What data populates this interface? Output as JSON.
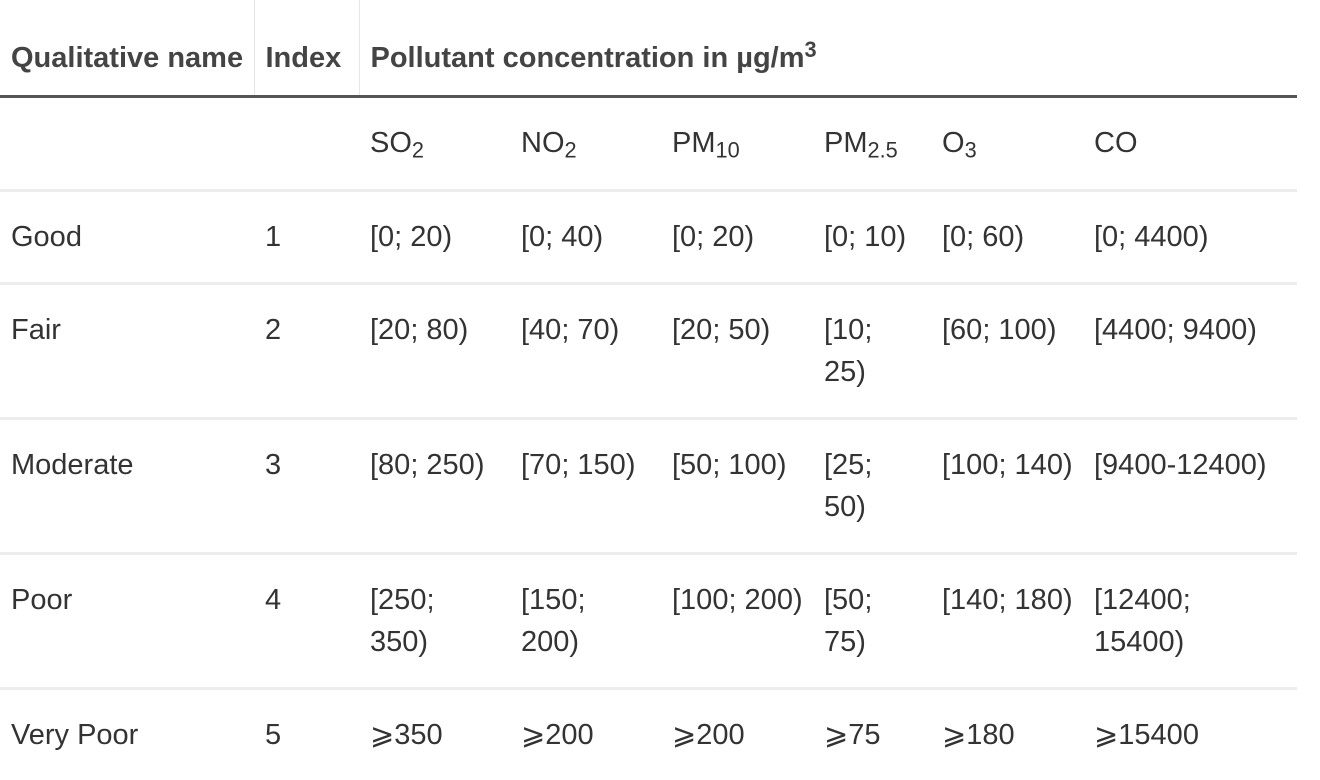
{
  "header": {
    "qualitative_name": "Qualitative name",
    "index": "Index",
    "concentration_prefix": "Pollutant concentration in µg/m",
    "concentration_sup": "3"
  },
  "pollutants": [
    {
      "base": "SO",
      "sub": "2"
    },
    {
      "base": "NO",
      "sub": "2"
    },
    {
      "base": "PM",
      "sub": "10"
    },
    {
      "base": "PM",
      "sub": "2.5"
    },
    {
      "base": "O",
      "sub": "3"
    },
    {
      "base": "CO",
      "sub": ""
    }
  ],
  "rows": [
    {
      "name": "Good",
      "index": "1",
      "values": [
        "[0; 20)",
        "[0; 40)",
        "[0; 20)",
        "[0; 10)",
        "[0; 60)",
        "[0; 4400)"
      ]
    },
    {
      "name": "Fair",
      "index": "2",
      "values": [
        "[20; 80)",
        "[40; 70)",
        "[20; 50)",
        "[10; 25)",
        "[60; 100)",
        "[4400; 9400)"
      ]
    },
    {
      "name": "Moderate",
      "index": "3",
      "values": [
        "[80; 250)",
        "[70; 150)",
        "[50; 100)",
        "[25; 50)",
        "[100; 140)",
        "[9400-12400)"
      ]
    },
    {
      "name": "Poor",
      "index": "4",
      "values": [
        "[250; 350)",
        "[150; 200)",
        "[100; 200)",
        "[50; 75)",
        "[140; 180)",
        "[12400; 15400)"
      ]
    },
    {
      "name": "Very Poor",
      "index": "5",
      "values": [
        "⩾350",
        "⩾200",
        "⩾200",
        "⩾75",
        "⩾180",
        "⩾15400"
      ]
    }
  ]
}
